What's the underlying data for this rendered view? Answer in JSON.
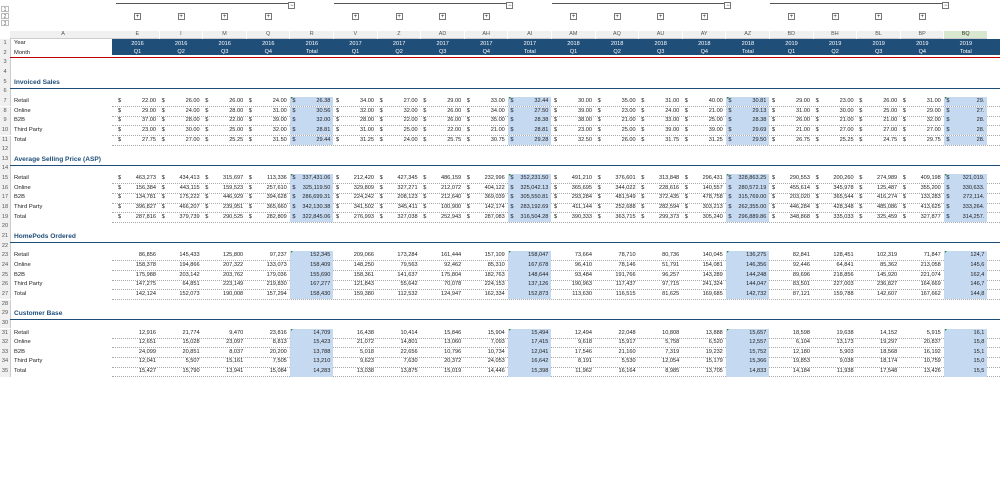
{
  "outline_levels": [
    "1",
    "2",
    "3"
  ],
  "group_buttons": {
    "collapse": "−",
    "expand": "+"
  },
  "col_letters": [
    "A",
    "E",
    "I",
    "M",
    "Q",
    "R",
    "V",
    "Z",
    "AD",
    "AH",
    "AI",
    "AM",
    "AQ",
    "AU",
    "AY",
    "AZ",
    "BD",
    "BH",
    "BL",
    "BP",
    "BQ"
  ],
  "selected_col": "BQ",
  "rows": {
    "year_label": "Year",
    "month_label": "Month"
  },
  "years": [
    "2016",
    "2016",
    "2016",
    "2016",
    "2016",
    "2017",
    "2017",
    "2017",
    "2017",
    "2017",
    "2018",
    "2018",
    "2018",
    "2018",
    "2018",
    "2019",
    "2019",
    "2019",
    "2019",
    "2019"
  ],
  "quarters": [
    "Q1",
    "Q2",
    "Q3",
    "Q4",
    "Total",
    "Q1",
    "Q2",
    "Q3",
    "Q4",
    "Total",
    "Q1",
    "Q2",
    "Q3",
    "Q4",
    "Total",
    "Q1",
    "Q2",
    "Q3",
    "Q4",
    "Total"
  ],
  "currency_symbol": "$",
  "sections": [
    {
      "title": "Invoiced Sales",
      "currency": true,
      "rows": [
        {
          "label": "Retail",
          "values": [
            "22.00",
            "26.00",
            "26.00",
            "24.00",
            "26.38",
            "34.00",
            "27.00",
            "29.00",
            "33.00",
            "32.44",
            "30.00",
            "35.00",
            "31.00",
            "40.00",
            "30.81",
            "29.00",
            "23.00",
            "26.00",
            "31.00",
            "29."
          ]
        },
        {
          "label": "Online",
          "values": [
            "29.00",
            "24.00",
            "28.00",
            "31.00",
            "30.56",
            "32.00",
            "32.00",
            "26.00",
            "34.00",
            "27.50",
            "39.00",
            "23.00",
            "24.00",
            "21.00",
            "29.13",
            "31.00",
            "30.00",
            "25.00",
            "29.00",
            "27."
          ]
        },
        {
          "label": "B2B",
          "values": [
            "37.00",
            "28.00",
            "22.00",
            "39.00",
            "32.00",
            "28.00",
            "22.00",
            "26.00",
            "35.00",
            "28.38",
            "38.00",
            "21.00",
            "33.00",
            "25.00",
            "28.38",
            "26.00",
            "21.00",
            "21.00",
            "32.00",
            "28."
          ]
        },
        {
          "label": "Third Party",
          "values": [
            "23.00",
            "30.00",
            "25.00",
            "32.00",
            "28.81",
            "31.00",
            "25.00",
            "22.00",
            "21.00",
            "28.81",
            "23.00",
            "25.00",
            "39.00",
            "39.00",
            "29.69",
            "21.00",
            "27.00",
            "27.00",
            "27.00",
            "28."
          ]
        },
        {
          "label": "Total",
          "values": [
            "27.75",
            "27.00",
            "25.25",
            "31.50",
            "29.44",
            "31.25",
            "24.00",
            "25.75",
            "30.75",
            "29.28",
            "32.50",
            "26.00",
            "31.75",
            "31.25",
            "29.50",
            "26.75",
            "25.25",
            "24.75",
            "29.75",
            "28."
          ]
        }
      ]
    },
    {
      "title": "Average Selling Price (ASP)",
      "currency": true,
      "rows": [
        {
          "label": "Retail",
          "values": [
            "463,273",
            "434,413",
            "315,697",
            "113,336",
            "337,431.06",
            "212,420",
            "427,345",
            "486,159",
            "232,996",
            "352,231.50",
            "491,210",
            "376,601",
            "313,848",
            "296,431",
            "328,863.25",
            "290,553",
            "200,260",
            "274,989",
            "409,198",
            "321,019."
          ]
        },
        {
          "label": "Online",
          "values": [
            "156,384",
            "443,115",
            "159,523",
            "257,610",
            "325,119.50",
            "329,809",
            "327,271",
            "212,072",
            "404,122",
            "325,042.13",
            "365,695",
            "344,022",
            "228,616",
            "140,557",
            "280,572.19",
            "455,614",
            "345,978",
            "125,487",
            "355,200",
            "330,633."
          ]
        },
        {
          "label": "B2B",
          "values": [
            "134,781",
            "175,222",
            "446,929",
            "394,628",
            "286,699.31",
            "224,242",
            "208,123",
            "212,640",
            "369,039",
            "305,550.81",
            "293,284",
            "481,549",
            "372,435",
            "478,758",
            "315,769.00",
            "203,020",
            "365,544",
            "416,274",
            "133,283",
            "272,114."
          ]
        },
        {
          "label": "Third Party",
          "values": [
            "396,827",
            "466,207",
            "239,951",
            "365,660",
            "342,130.38",
            "341,502",
            "345,411",
            "100,900",
            "142,174",
            "283,192.69",
            "411,144",
            "252,688",
            "282,594",
            "303,213",
            "262,355.00",
            "446,284",
            "428,348",
            "485,086",
            "413,625",
            "333,264."
          ]
        },
        {
          "label": "Total",
          "values": [
            "287,816",
            "379,739",
            "290,525",
            "282,809",
            "322,845.06",
            "276,993",
            "327,038",
            "252,943",
            "287,083",
            "316,504.28",
            "390,333",
            "363,715",
            "299,373",
            "305,240",
            "296,889.86",
            "348,868",
            "335,033",
            "325,459",
            "327,877",
            "314,257."
          ]
        }
      ]
    },
    {
      "title": "HomePods Ordered",
      "currency": false,
      "rows": [
        {
          "label": "Retail",
          "values": [
            "86,856",
            "145,433",
            "125,800",
            "97,237",
            "152,345",
            "209,066",
            "173,284",
            "161,444",
            "157,109",
            "158,047",
            "73,664",
            "78,710",
            "80,736",
            "140,045",
            "136,275",
            "82,841",
            "128,451",
            "102,319",
            "71,847",
            "124,7"
          ]
        },
        {
          "label": "Online",
          "values": [
            "158,378",
            "194,866",
            "207,322",
            "133,073",
            "158,409",
            "148,250",
            "79,563",
            "92,462",
            "85,310",
            "167,678",
            "96,410",
            "78,146",
            "51,791",
            "154,081",
            "146,356",
            "92,446",
            "64,841",
            "85,362",
            "213,058",
            "145,6"
          ]
        },
        {
          "label": "B2B",
          "values": [
            "175,988",
            "203,142",
            "203,762",
            "179,036",
            "155,690",
            "158,361",
            "141,637",
            "175,804",
            "182,763",
            "148,644",
            "93,484",
            "191,766",
            "96,257",
            "143,289",
            "144,248",
            "89,696",
            "218,856",
            "145,920",
            "221,074",
            "162,4"
          ]
        },
        {
          "label": "Third Party",
          "values": [
            "147,275",
            "64,851",
            "223,149",
            "219,830",
            "167,277",
            "121,843",
            "55,642",
            "70,078",
            "224,153",
            "137,126",
            "190,963",
            "117,437",
            "97,715",
            "241,324",
            "144,047",
            "83,501",
            "227,003",
            "236,827",
            "164,669",
            "146,7"
          ]
        },
        {
          "label": "Total",
          "values": [
            "142,124",
            "152,073",
            "190,008",
            "157,294",
            "158,430",
            "159,380",
            "112,532",
            "124,947",
            "162,334",
            "152,873",
            "113,630",
            "116,515",
            "81,625",
            "169,685",
            "142,732",
            "87,121",
            "159,788",
            "142,607",
            "167,662",
            "144,8"
          ]
        }
      ]
    },
    {
      "title": "Customer Base",
      "currency": false,
      "rows": [
        {
          "label": "Retail",
          "values": [
            "12,916",
            "21,774",
            "9,470",
            "23,816",
            "14,709",
            "16,438",
            "10,414",
            "15,846",
            "15,904",
            "15,494",
            "12,494",
            "22,048",
            "10,808",
            "13,888",
            "15,657",
            "18,598",
            "19,638",
            "14,152",
            "5,915",
            "16,1"
          ]
        },
        {
          "label": "Online",
          "values": [
            "12,651",
            "15,028",
            "23,097",
            "8,813",
            "15,423",
            "21,072",
            "14,801",
            "13,060",
            "7,093",
            "17,415",
            "9,618",
            "15,917",
            "5,758",
            "6,520",
            "12,557",
            "6,104",
            "13,173",
            "19,297",
            "20,837",
            "15,8"
          ]
        },
        {
          "label": "B2B",
          "values": [
            "24,099",
            "20,851",
            "8,037",
            "20,200",
            "13,788",
            "5,018",
            "22,656",
            "10,796",
            "10,734",
            "12,041",
            "17,546",
            "21,160",
            "7,319",
            "19,232",
            "15,752",
            "12,180",
            "5,903",
            "18,568",
            "16,192",
            "15,1"
          ]
        },
        {
          "label": "Third Party",
          "values": [
            "12,041",
            "5,507",
            "15,161",
            "7,505",
            "13,210",
            "9,623",
            "7,630",
            "20,372",
            "24,053",
            "16,642",
            "8,191",
            "5,530",
            "12,054",
            "15,179",
            "15,366",
            "19,853",
            "9,038",
            "18,174",
            "10,759",
            "15,0"
          ]
        },
        {
          "label": "Total",
          "values": [
            "15,427",
            "15,790",
            "13,941",
            "15,084",
            "14,283",
            "13,038",
            "13,875",
            "15,019",
            "14,446",
            "15,398",
            "11,962",
            "16,164",
            "8,985",
            "13,705",
            "14,833",
            "14,184",
            "11,938",
            "17,548",
            "13,426",
            "15,5"
          ]
        }
      ]
    }
  ]
}
